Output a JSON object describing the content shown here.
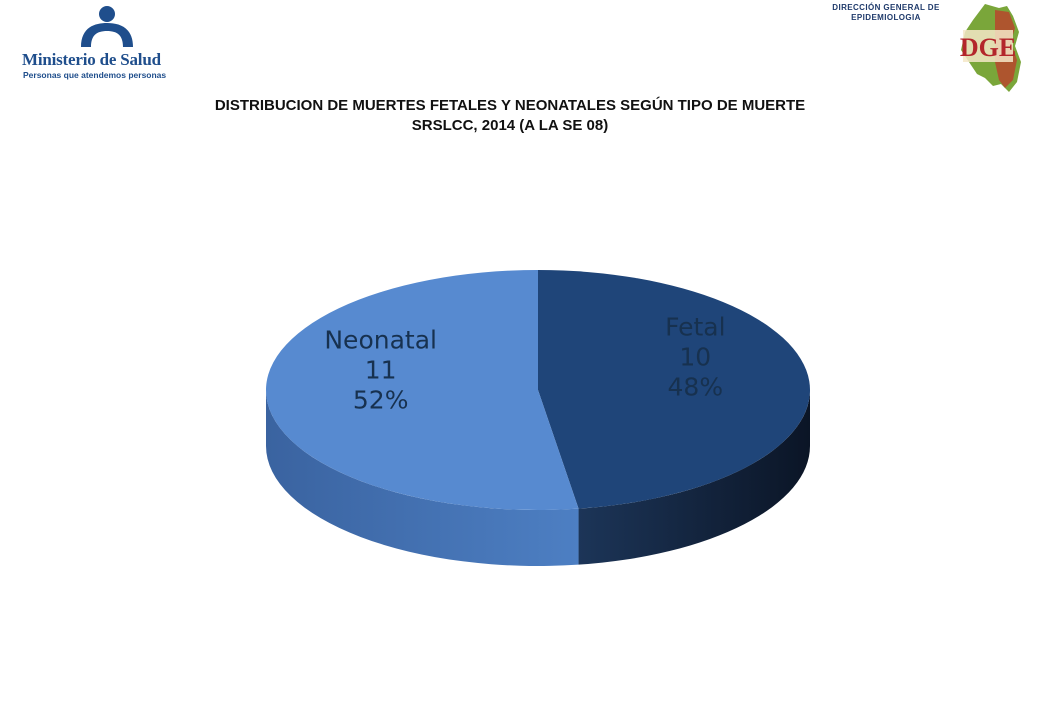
{
  "header": {
    "brand_name": "Ministerio de Salud",
    "brand_slogan": "Personas que atendemos personas",
    "dge_caption_line1": "DIRECCIÓN GENERAL DE",
    "dge_caption_line2": "EPIDEMIOLOGIA",
    "dge_logo_text": "DGE"
  },
  "chart_data": {
    "type": "pie",
    "title": "DISTRIBUCION DE MUERTES FETALES Y NEONATALES SEGÚN TIPO DE MUERTE",
    "subtitle": "SRSLCC, 2014 (A LA SE 08)",
    "slices": [
      {
        "label": "Fetal",
        "value": 10,
        "percent": "48%",
        "color": "#1f4579",
        "side_color": "#13263f"
      },
      {
        "label": "Neonatal",
        "value": 11,
        "percent": "52%",
        "color": "#578ad0",
        "side_color": "#3d6aa8"
      }
    ],
    "style": "3d",
    "legend": "none"
  }
}
